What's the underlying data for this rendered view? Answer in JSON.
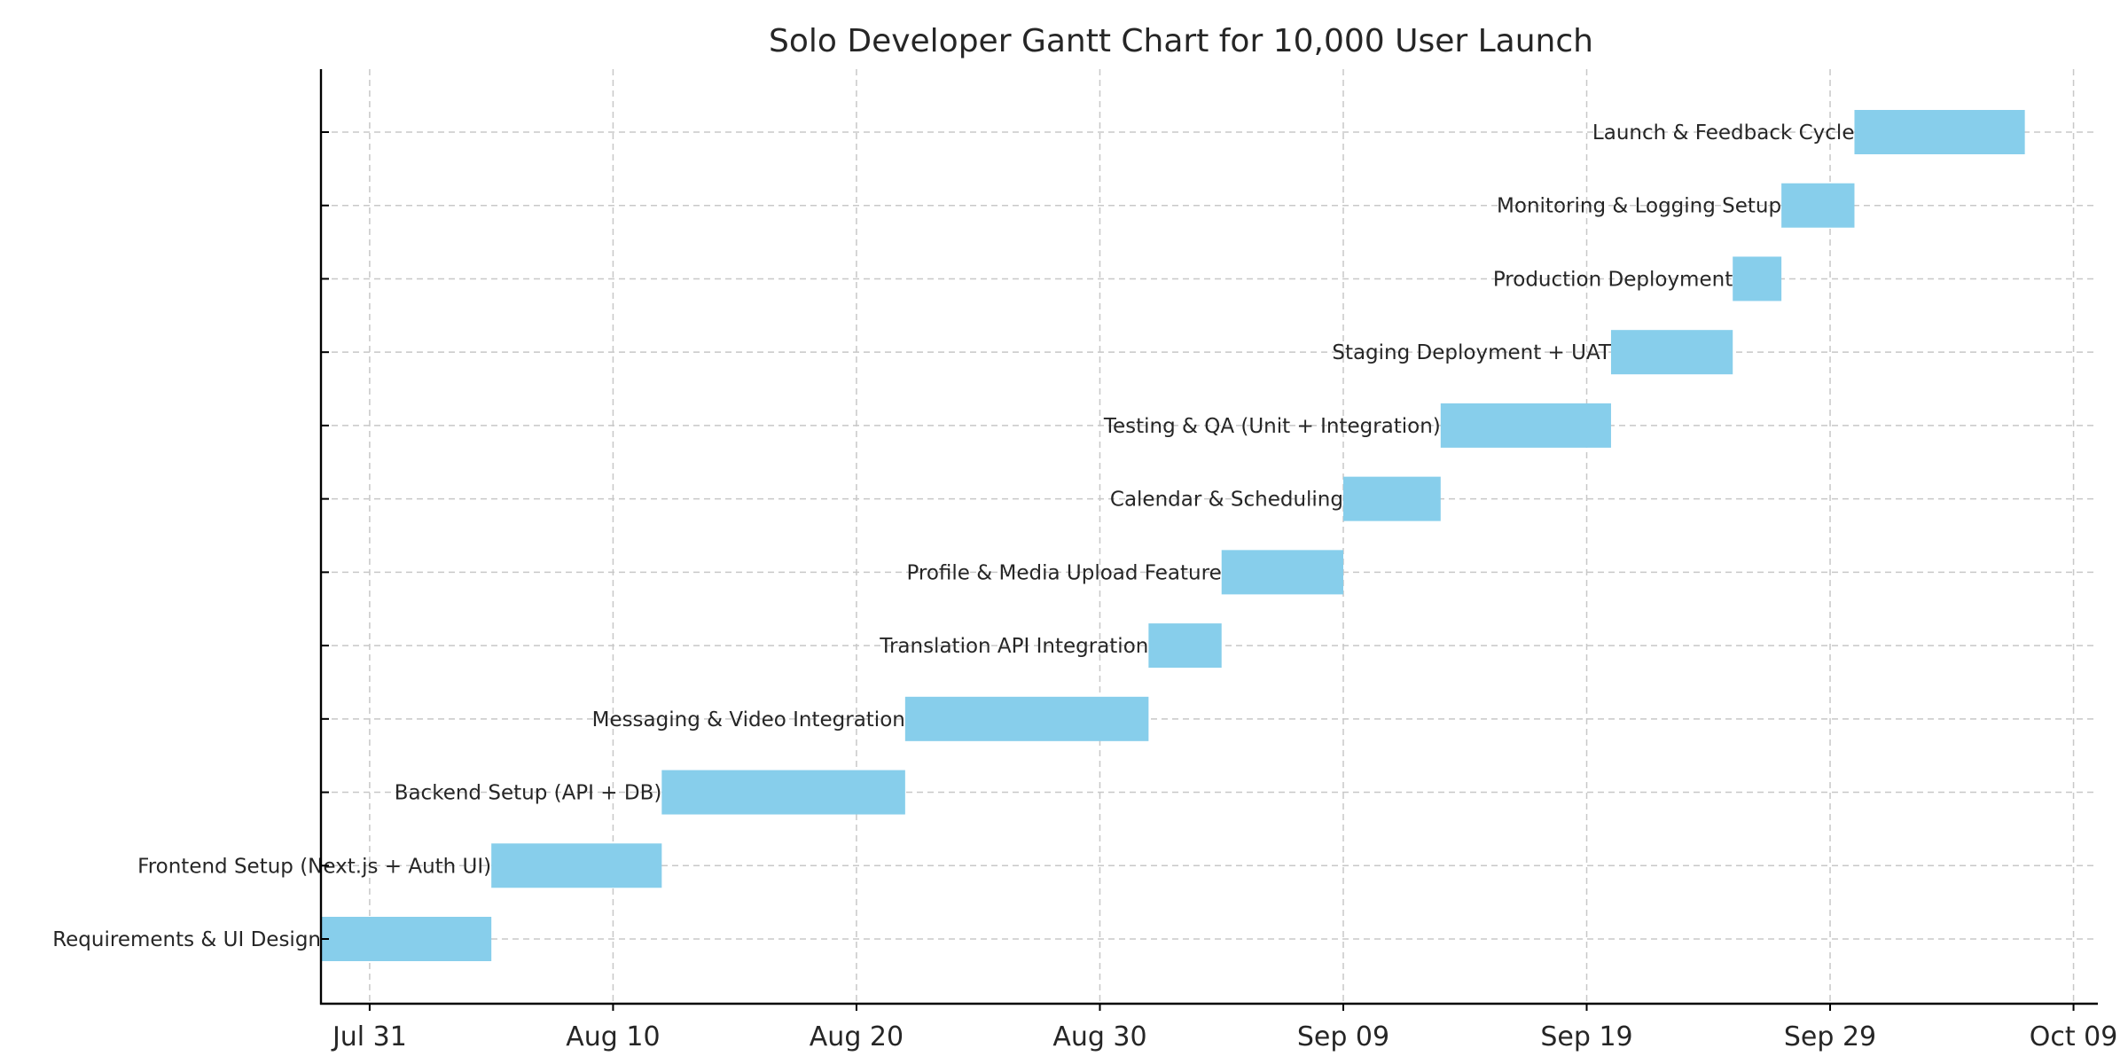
{
  "chart_data": {
    "type": "gantt",
    "title": "Solo Developer Gantt Chart for 10,000 User Launch",
    "xlabel": "",
    "ylabel": "",
    "x_axis": {
      "type": "date",
      "range": [
        "2025-07-29",
        "2025-10-10"
      ],
      "ticks": [
        {
          "date": "2025-07-31",
          "label": "Jul 31"
        },
        {
          "date": "2025-08-10",
          "label": "Aug 10"
        },
        {
          "date": "2025-08-20",
          "label": "Aug 20"
        },
        {
          "date": "2025-08-30",
          "label": "Aug 30"
        },
        {
          "date": "2025-09-09",
          "label": "Sep 09"
        },
        {
          "date": "2025-09-19",
          "label": "Sep 19"
        },
        {
          "date": "2025-09-29",
          "label": "Sep 29"
        },
        {
          "date": "2025-10-09",
          "label": "Oct 09"
        }
      ]
    },
    "grid": true,
    "bar_color": "#87ceeb",
    "tasks": [
      {
        "name": "Requirements & UI Design",
        "start": "2025-07-29",
        "end": "2025-08-05"
      },
      {
        "name": "Frontend Setup (Next.js + Auth UI)",
        "start": "2025-08-05",
        "end": "2025-08-12"
      },
      {
        "name": "Backend Setup (API + DB)",
        "start": "2025-08-12",
        "end": "2025-08-22"
      },
      {
        "name": "Messaging & Video Integration",
        "start": "2025-08-22",
        "end": "2025-09-01"
      },
      {
        "name": "Translation API Integration",
        "start": "2025-09-01",
        "end": "2025-09-04"
      },
      {
        "name": "Profile & Media Upload Feature",
        "start": "2025-09-04",
        "end": "2025-09-09"
      },
      {
        "name": "Calendar & Scheduling",
        "start": "2025-09-09",
        "end": "2025-09-13"
      },
      {
        "name": "Testing & QA (Unit + Integration)",
        "start": "2025-09-13",
        "end": "2025-09-20"
      },
      {
        "name": "Staging Deployment + UAT",
        "start": "2025-09-20",
        "end": "2025-09-25"
      },
      {
        "name": "Production Deployment",
        "start": "2025-09-25",
        "end": "2025-09-27"
      },
      {
        "name": "Monitoring & Logging Setup",
        "start": "2025-09-27",
        "end": "2025-09-30"
      },
      {
        "name": "Launch & Feedback Cycle",
        "start": "2025-09-30",
        "end": "2025-10-07"
      }
    ]
  }
}
